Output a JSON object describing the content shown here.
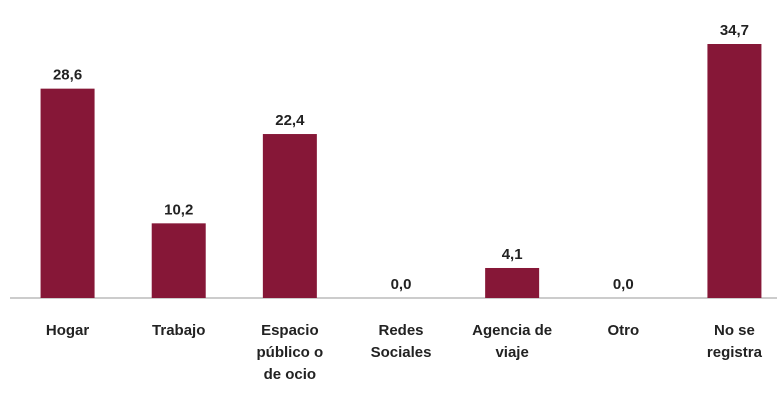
{
  "chart_data": {
    "type": "bar",
    "categories": [
      "Hogar",
      "Trabajo",
      "Espacio público o de ocio",
      "Redes Sociales",
      "Agencia de viaje",
      "Otro",
      "No se registra"
    ],
    "values": [
      28.6,
      10.2,
      22.4,
      0.0,
      4.1,
      0.0,
      34.7
    ],
    "value_labels": [
      "28,6",
      "10,2",
      "22,4",
      "0,0",
      "4,1",
      "0,0",
      "34,7"
    ],
    "color": "#861737"
  }
}
